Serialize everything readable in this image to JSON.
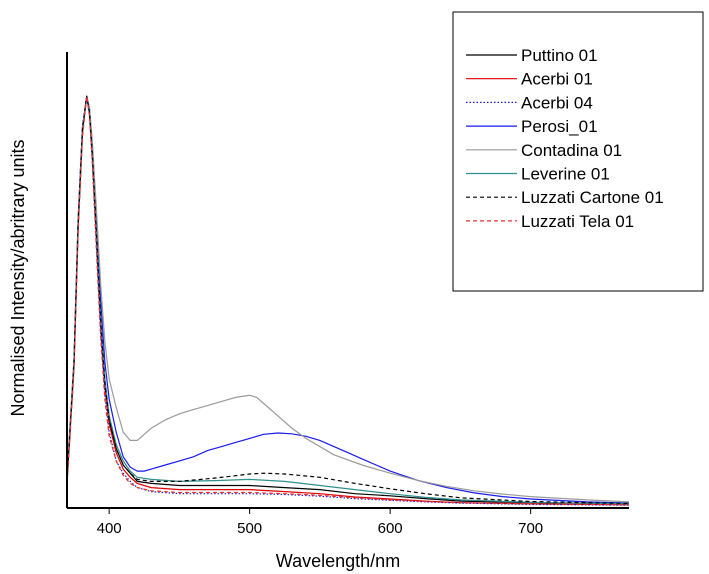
{
  "chart_data": {
    "type": "line",
    "title": "",
    "xlabel": "Wavelength/nm",
    "ylabel": "Normalised Intensity/abritrary units",
    "xlim": [
      370,
      770
    ],
    "ylim": [
      0,
      1.05
    ],
    "x_ticks": [
      400,
      500,
      600,
      700
    ],
    "x_tick_labels": [
      "400",
      "500",
      "600",
      "700"
    ],
    "y_ticks_labeled": false,
    "grid": false,
    "legend_placement": "top-right",
    "series": [
      {
        "name": "Puttino 01",
        "color": "#000000",
        "dash": "solid",
        "x": [
          370,
          375,
          378,
          381,
          384,
          386,
          388,
          391,
          394,
          397,
          400,
          405,
          410,
          415,
          420,
          430,
          450,
          475,
          500,
          525,
          550,
          575,
          600,
          625,
          650,
          700,
          770
        ],
        "y": [
          0.06,
          0.35,
          0.7,
          0.92,
          1.0,
          0.96,
          0.86,
          0.66,
          0.45,
          0.3,
          0.21,
          0.14,
          0.1,
          0.08,
          0.06,
          0.055,
          0.05,
          0.05,
          0.05,
          0.045,
          0.04,
          0.03,
          0.025,
          0.018,
          0.012,
          0.008,
          0.005
        ]
      },
      {
        "name": "Acerbi 01",
        "color": "#e00000",
        "dash": "solid",
        "x": [
          370,
          375,
          378,
          381,
          384,
          386,
          388,
          391,
          394,
          397,
          400,
          405,
          410,
          415,
          420,
          430,
          450,
          475,
          500,
          525,
          550,
          575,
          600,
          625,
          650,
          700,
          770
        ],
        "y": [
          0.06,
          0.34,
          0.68,
          0.91,
          1.0,
          0.96,
          0.86,
          0.65,
          0.44,
          0.29,
          0.2,
          0.13,
          0.09,
          0.07,
          0.055,
          0.045,
          0.04,
          0.04,
          0.04,
          0.035,
          0.03,
          0.022,
          0.017,
          0.012,
          0.008,
          0.005,
          0.003
        ]
      },
      {
        "name": "Acerbi 04",
        "color": "#1a1acc",
        "dash": "dotted",
        "x": [
          370,
          375,
          378,
          381,
          384,
          386,
          388,
          391,
          394,
          397,
          400,
          405,
          410,
          415,
          420,
          430,
          450,
          475,
          500,
          525,
          550,
          575,
          600,
          625,
          650,
          700,
          770
        ],
        "y": [
          0.06,
          0.36,
          0.71,
          0.93,
          1.0,
          0.95,
          0.84,
          0.63,
          0.42,
          0.27,
          0.18,
          0.11,
          0.08,
          0.06,
          0.045,
          0.035,
          0.03,
          0.03,
          0.03,
          0.028,
          0.024,
          0.018,
          0.014,
          0.01,
          0.007,
          0.004,
          0.002
        ]
      },
      {
        "name": "Perosi_01",
        "color": "#1a1aee",
        "dash": "solid",
        "x": [
          370,
          375,
          378,
          381,
          384,
          386,
          388,
          391,
          394,
          397,
          400,
          405,
          410,
          415,
          420,
          425,
          430,
          440,
          450,
          460,
          470,
          480,
          490,
          500,
          510,
          520,
          530,
          540,
          550,
          560,
          570,
          580,
          590,
          600,
          620,
          640,
          660,
          680,
          700,
          740,
          770
        ],
        "y": [
          0.07,
          0.35,
          0.7,
          0.92,
          1.0,
          0.97,
          0.88,
          0.7,
          0.5,
          0.35,
          0.26,
          0.18,
          0.12,
          0.095,
          0.085,
          0.085,
          0.09,
          0.1,
          0.11,
          0.12,
          0.135,
          0.145,
          0.155,
          0.165,
          0.175,
          0.178,
          0.176,
          0.17,
          0.16,
          0.145,
          0.13,
          0.115,
          0.1,
          0.085,
          0.062,
          0.045,
          0.032,
          0.023,
          0.017,
          0.01,
          0.007
        ]
      },
      {
        "name": "Contadina 01",
        "color": "#9a9a9a",
        "dash": "solid",
        "x": [
          370,
          375,
          378,
          381,
          384,
          386,
          388,
          391,
          394,
          397,
          400,
          405,
          410,
          415,
          420,
          425,
          430,
          440,
          450,
          460,
          470,
          480,
          490,
          500,
          505,
          510,
          520,
          530,
          540,
          550,
          560,
          580,
          600,
          620,
          640,
          660,
          680,
          700,
          740,
          770
        ],
        "y": [
          0.08,
          0.36,
          0.7,
          0.92,
          1.0,
          0.97,
          0.89,
          0.72,
          0.54,
          0.4,
          0.31,
          0.24,
          0.18,
          0.16,
          0.16,
          0.175,
          0.19,
          0.21,
          0.225,
          0.235,
          0.245,
          0.255,
          0.265,
          0.27,
          0.265,
          0.25,
          0.22,
          0.19,
          0.165,
          0.145,
          0.125,
          0.1,
          0.08,
          0.062,
          0.048,
          0.037,
          0.029,
          0.023,
          0.015,
          0.01
        ]
      },
      {
        "name": "Leverine 01",
        "color": "#2f8f8f",
        "dash": "solid",
        "x": [
          370,
          375,
          378,
          381,
          384,
          386,
          388,
          391,
          394,
          397,
          400,
          405,
          410,
          415,
          420,
          430,
          450,
          475,
          500,
          525,
          550,
          575,
          600,
          625,
          650,
          700,
          770
        ],
        "y": [
          0.06,
          0.35,
          0.69,
          0.92,
          1.0,
          0.96,
          0.86,
          0.66,
          0.45,
          0.31,
          0.22,
          0.15,
          0.11,
          0.085,
          0.07,
          0.065,
          0.06,
          0.062,
          0.065,
          0.06,
          0.05,
          0.04,
          0.03,
          0.021,
          0.015,
          0.009,
          0.005
        ]
      },
      {
        "name": "Luzzati Cartone 01",
        "color": "#000000",
        "dash": "dashed",
        "x": [
          370,
          375,
          378,
          381,
          384,
          386,
          388,
          391,
          394,
          397,
          400,
          405,
          410,
          415,
          420,
          430,
          450,
          475,
          490,
          500,
          510,
          525,
          550,
          575,
          600,
          625,
          650,
          700,
          770
        ],
        "y": [
          0.06,
          0.35,
          0.69,
          0.92,
          1.0,
          0.96,
          0.86,
          0.66,
          0.45,
          0.3,
          0.21,
          0.14,
          0.1,
          0.08,
          0.065,
          0.06,
          0.06,
          0.068,
          0.074,
          0.078,
          0.08,
          0.078,
          0.07,
          0.055,
          0.042,
          0.03,
          0.02,
          0.011,
          0.006
        ]
      },
      {
        "name": "Luzzati Tela 01",
        "color": "#e03030",
        "dash": "dashed",
        "x": [
          370,
          375,
          378,
          381,
          384,
          386,
          388,
          391,
          394,
          397,
          400,
          405,
          410,
          415,
          420,
          430,
          450,
          475,
          500,
          525,
          550,
          575,
          600,
          625,
          650,
          700,
          770
        ],
        "y": [
          0.05,
          0.33,
          0.67,
          0.9,
          1.0,
          0.95,
          0.84,
          0.62,
          0.41,
          0.26,
          0.17,
          0.11,
          0.075,
          0.055,
          0.045,
          0.037,
          0.033,
          0.033,
          0.033,
          0.03,
          0.026,
          0.02,
          0.015,
          0.011,
          0.008,
          0.005,
          0.003
        ]
      }
    ]
  }
}
